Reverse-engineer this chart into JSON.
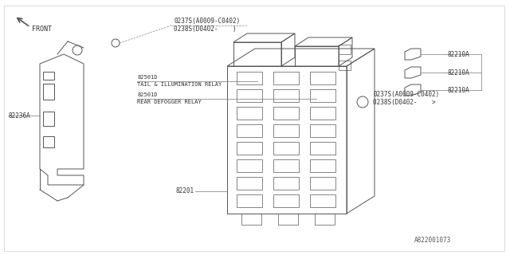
{
  "bg_color": "#ffffff",
  "line_color": "#555555",
  "part_number": "A822001073",
  "labels": {
    "front": "FRONT",
    "part1": "82236A",
    "part2": "82201",
    "part3_top1": "0237S(A0009-C0402)",
    "part3_top2": "0238S(D0402-    )",
    "part4_label1": "82501D",
    "part4_text1": "TAIL & ILLUMINATION RELAY",
    "part4_label2": "82501D",
    "part4_text2": "REAR DEFOGGER RELAY",
    "part5_top1": "0237S(A0009-C0402)",
    "part5_top2": "0238S(D0402-    >",
    "part6_1": "82210A",
    "part6_2": "82210A",
    "part6_3": "82210A"
  }
}
